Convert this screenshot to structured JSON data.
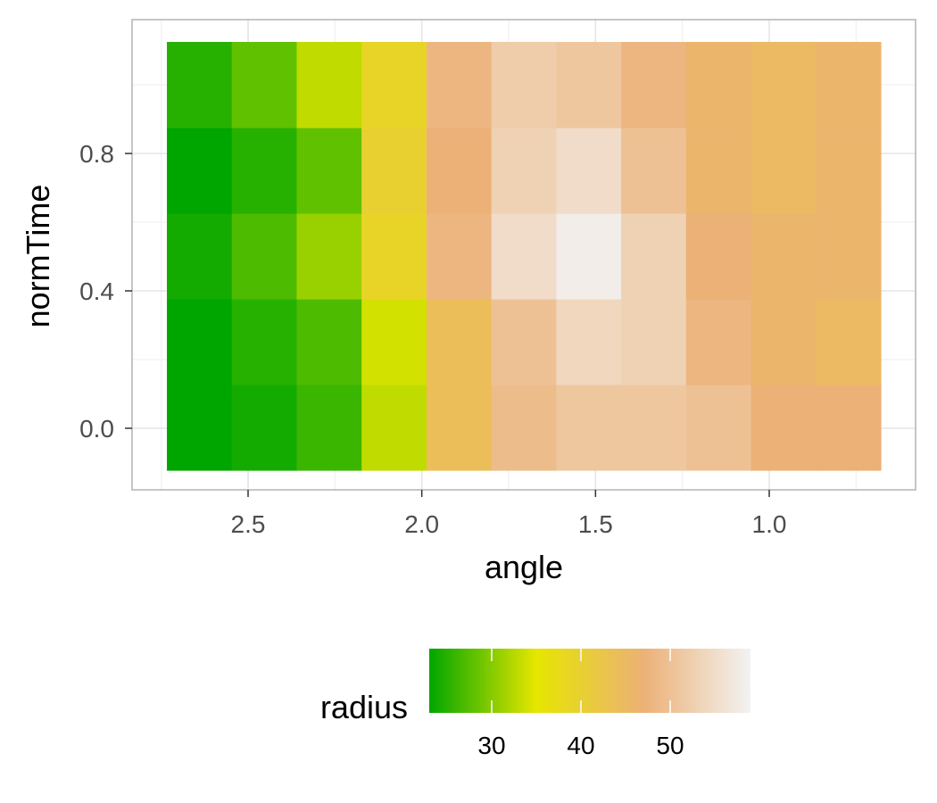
{
  "chart_data": {
    "type": "heatmap",
    "title": "",
    "xlabel": "angle",
    "ylabel": "normTime",
    "x_reversed": true,
    "x_ticks": [
      "2.5",
      "2.0",
      "1.5",
      "1.0"
    ],
    "x_tick_values": [
      2.5,
      2.0,
      1.5,
      1.0
    ],
    "y_ticks": [
      "0.0",
      "0.4",
      "0.8"
    ],
    "y_tick_values": [
      0.0,
      0.4,
      0.8
    ],
    "x_centers": [
      2.65,
      2.46,
      2.27,
      2.08,
      1.89,
      1.7,
      1.51,
      1.32,
      1.14,
      0.95,
      0.76
    ],
    "y_centers": [
      0.0,
      0.25,
      0.5,
      0.75,
      1.0
    ],
    "values": [
      [
        22,
        24,
        26,
        33,
        44,
        49,
        51,
        51,
        50,
        47,
        47
      ],
      [
        23,
        25,
        27,
        34,
        44,
        50,
        54,
        53,
        48,
        46,
        45
      ],
      [
        24,
        27,
        31,
        39,
        48,
        55,
        58,
        53,
        47,
        46,
        46
      ],
      [
        23,
        25,
        28,
        40,
        47,
        53,
        55,
        50,
        46,
        45,
        46
      ],
      [
        25,
        28,
        33,
        39,
        48,
        52,
        51,
        48,
        46,
        45,
        46
      ]
    ],
    "colorbar": {
      "title": "radius",
      "min": 23,
      "max": 59,
      "ticks": [
        "30",
        "40",
        "50"
      ],
      "tick_values": [
        30,
        40,
        50
      ],
      "colors": [
        "#00A600",
        "#E6E600",
        "#ECB176",
        "#F2F2F2"
      ]
    },
    "grid": true,
    "legend": "bottom"
  }
}
